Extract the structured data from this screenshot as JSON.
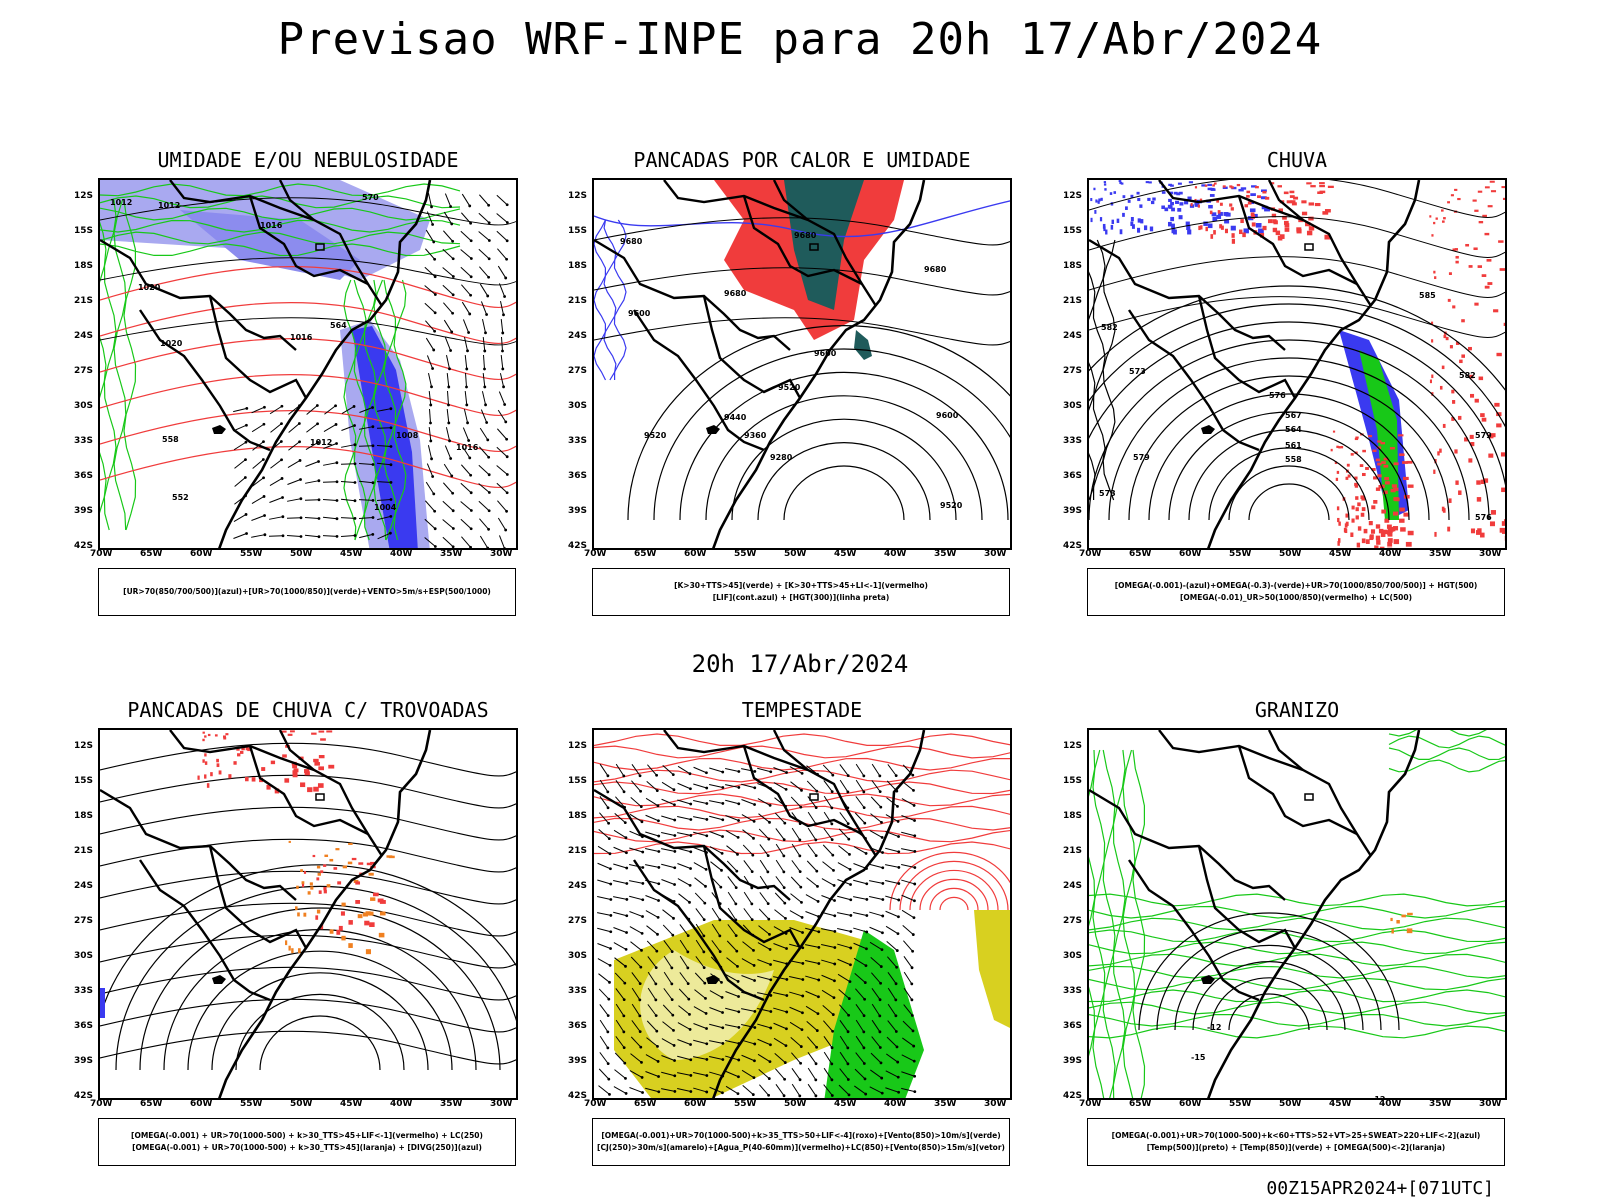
{
  "title": "Previsao WRF-INPE  para 20h 17/Abr/2024",
  "mid_title": "20h 17/Abr/2024",
  "footer": "00Z15APR2024+[071UTC]",
  "lat_labels": [
    "12S",
    "15S",
    "18S",
    "21S",
    "24S",
    "27S",
    "30S",
    "33S",
    "36S",
    "39S",
    "42S"
  ],
  "lon_labels": [
    "70W",
    "65W",
    "60W",
    "55W",
    "50W",
    "45W",
    "40W",
    "35W",
    "30W"
  ],
  "colors": {
    "blue": "#3a3af0",
    "lavender": "#a9a9f0",
    "green": "#18c818",
    "red": "#f03c3c",
    "teal": "#1f5b5b",
    "yellow": "#d8d020",
    "orange": "#f08020"
  },
  "panels": [
    {
      "id": "umidade",
      "title": "UMIDADE E/OU NEBULOSIDADE",
      "legend": [
        "[UR>70(850/700/500)](azul)+[UR>70(1000/850)](verde)+VENTO>5m/s+ESP(500/1000)"
      ],
      "contour_labels": [
        "1012",
        "1012",
        "1016",
        "1020",
        "1020",
        "1016",
        "1012",
        "1008",
        "1004",
        "1016",
        "570",
        "564",
        "558",
        "552"
      ]
    },
    {
      "id": "pancadas-calor",
      "title": "PANCADAS POR CALOR E UMIDADE",
      "legend": [
        "[K>30+TTS>45](verde) + [K>30+TTS>45+LI<-1](vermelho)",
        "[LIF](cont.azul) + [HGT(300)](linha preta)"
      ],
      "contour_labels": [
        "9680",
        "9680",
        "9680",
        "9680",
        "9600",
        "9600",
        "9520",
        "9440",
        "9360",
        "9280",
        "9600",
        "9520",
        "9520"
      ]
    },
    {
      "id": "chuva",
      "title": "CHUVA",
      "legend": [
        "[OMEGA(-0.001)-(azul)+OMEGA(-0.3)-(verde)+UR>70(1000/850/700/500)] + HGT(500)",
        "[OMEGA(-0.01)_UR>50(1000/850)(vermelho) + LC(500)"
      ],
      "contour_labels": [
        "585",
        "582",
        "579",
        "576",
        "573",
        "567",
        "564",
        "561",
        "558",
        "579",
        "576",
        "573",
        "582"
      ]
    },
    {
      "id": "pancadas-trovoadas",
      "title": "PANCADAS DE CHUVA C/ TROVOADAS",
      "legend": [
        "[OMEGA(-0.001) + UR>70(1000-500) + k>30_TTS>45+LIF<-1](vermelho) + LC(250)",
        "[OMEGA(-0.001) + UR>70(1000-500) + k>30_TTS>45](laranja) + [DIVG(250)](azul)"
      ],
      "contour_labels": []
    },
    {
      "id": "tempestade",
      "title": "TEMPESTADE",
      "legend": [
        "[OMEGA(-0.001)+UR>70(1000-500)+k>35_TTS>50+LIF<-4](roxo)+[Vento(850)>10m/s](verde)",
        "[CJ(250)>30m/s](amarelo)+[Agua_P(40-60mm)](vermelho)+LC(850)+[Vento(850)>15m/s](vetor)"
      ],
      "contour_labels": []
    },
    {
      "id": "granizo",
      "title": "GRANIZO",
      "legend": [
        "[OMEGA(-0.001)+UR>70(1000-500)+k<60+TTS>52+VT>25+SWEAT>220+LIF<-2](azul)",
        "[Temp(500)](preto) + [Temp(850)](verde) + [OMEGA(500)<-2](laranja)"
      ],
      "contour_labels": [
        "-12",
        "-15",
        "-12"
      ]
    }
  ]
}
